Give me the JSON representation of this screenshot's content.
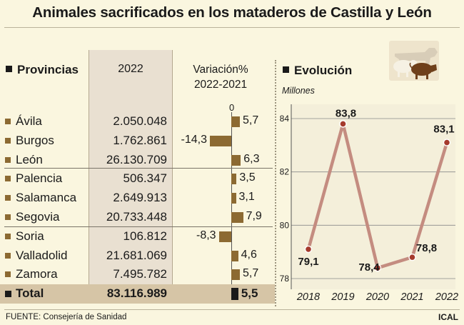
{
  "title": "Animales sacrificados en los mataderos de Castilla y León",
  "table": {
    "header_provinces": "Provincias",
    "header_year": "2022",
    "header_variation_line1": "Variación%",
    "header_variation_line2": "2022-2021",
    "zero_label": "0",
    "rows": [
      {
        "name": "Ávila",
        "value": "2.050.048",
        "variation": 5.7,
        "variation_label": "5,7"
      },
      {
        "name": "Burgos",
        "value": "1.762.861",
        "variation": -14.3,
        "variation_label": "-14,3"
      },
      {
        "name": "León",
        "value": "26.130.709",
        "variation": 6.3,
        "variation_label": "6,3"
      },
      {
        "name": "Palencia",
        "value": "506.347",
        "variation": 3.5,
        "variation_label": "3,5"
      },
      {
        "name": "Salamanca",
        "value": "2.649.913",
        "variation": 3.1,
        "variation_label": "3,1"
      },
      {
        "name": "Segovia",
        "value": "20.733.448",
        "variation": 7.9,
        "variation_label": "7,9"
      },
      {
        "name": "Soria",
        "value": "106.812",
        "variation": -8.3,
        "variation_label": "-8,3"
      },
      {
        "name": "Valladolid",
        "value": "21.681.069",
        "variation": 4.6,
        "variation_label": "4,6"
      },
      {
        "name": "Zamora",
        "value": "7.495.782",
        "variation": 5.7,
        "variation_label": "5,7"
      }
    ],
    "total": {
      "name": "Total",
      "value": "83.116.989",
      "variation": 5.5,
      "variation_label": "5,5"
    }
  },
  "evolution": {
    "heading": "Evolución",
    "unit": "Millones"
  },
  "chart_data": {
    "type": "line",
    "title": "Evolución",
    "ylabel": "Millones",
    "x": [
      "2018",
      "2019",
      "2020",
      "2021",
      "2022"
    ],
    "values": [
      79.1,
      83.8,
      78.4,
      78.8,
      83.1
    ],
    "value_labels": [
      "79,1",
      "83,8",
      "78,4",
      "78,8",
      "83,1"
    ],
    "ylim": [
      78,
      84
    ],
    "yticks": [
      78,
      80,
      82,
      84
    ],
    "grid": true,
    "line_color": "#c48c80",
    "marker_color": "#a53a2c"
  },
  "colors": {
    "background": "#faf6df",
    "bar": "#8c6a32",
    "total_bar": "#1a1a1a",
    "year_column": "#e9e0d1",
    "total_band": "#d6c5a6"
  },
  "footer": {
    "source": "FUENTE: Consejería de Sanidad",
    "credit": "ICAL"
  }
}
